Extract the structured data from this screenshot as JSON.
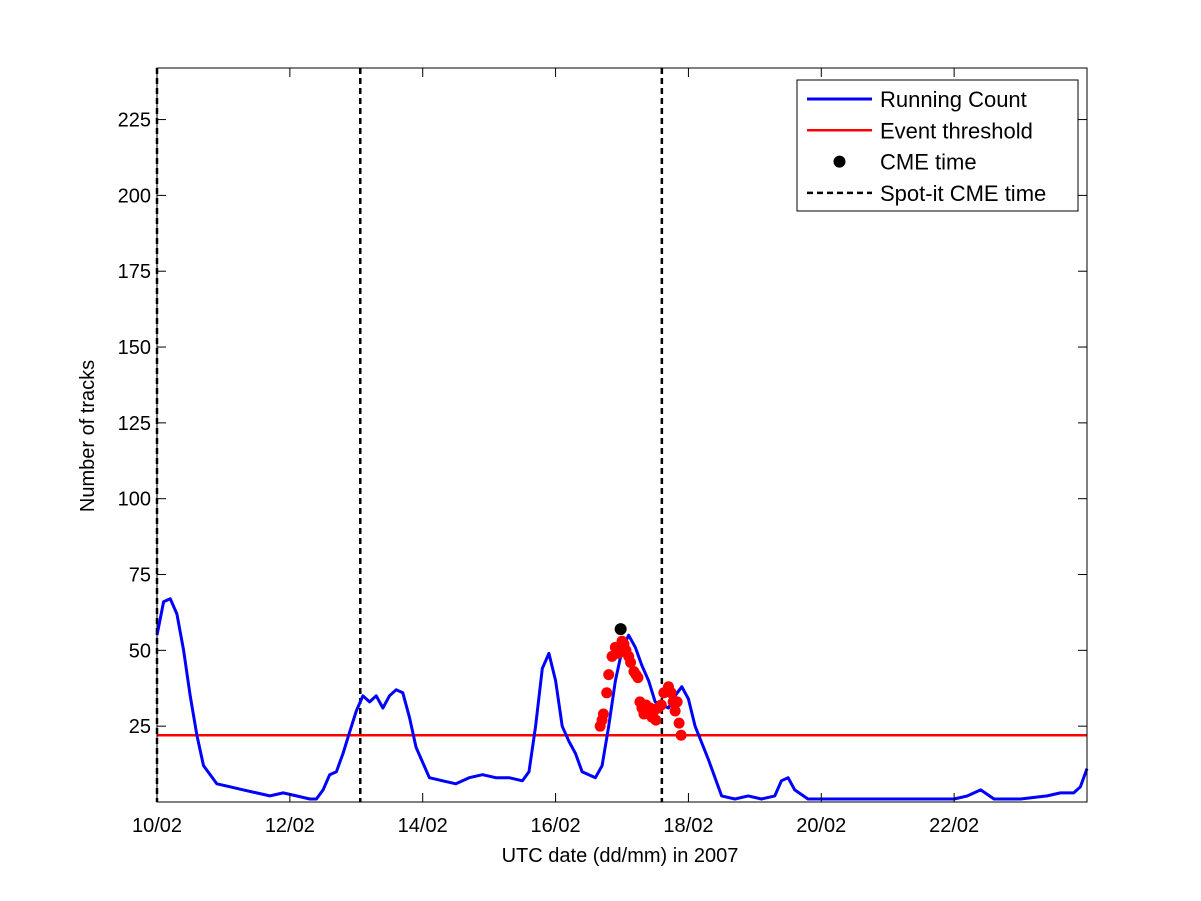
{
  "chart_data": {
    "type": "line",
    "title": "",
    "xlabel": "UTC date (dd/mm) in 2007",
    "ylabel": "Number of tracks",
    "x_unit": "date (UTC), 2007",
    "xlim": [
      "2007-02-10 00:00",
      "2007-02-24 00:00"
    ],
    "ylim": [
      0,
      242
    ],
    "x_ticks": [
      {
        "date": "2007-02-10",
        "label": "10/02"
      },
      {
        "date": "2007-02-12",
        "label": "12/02"
      },
      {
        "date": "2007-02-14",
        "label": "14/02"
      },
      {
        "date": "2007-02-16",
        "label": "16/02"
      },
      {
        "date": "2007-02-18",
        "label": "18/02"
      },
      {
        "date": "2007-02-20",
        "label": "20/02"
      },
      {
        "date": "2007-02-22",
        "label": "22/02"
      }
    ],
    "y_ticks": [
      25,
      50,
      75,
      100,
      125,
      150,
      175,
      200,
      225
    ],
    "grid": false,
    "legend_position": "top-right",
    "colors": {
      "running_count": "#0000ff",
      "threshold": "#ff0000",
      "event_markers": "#ff0000",
      "cme_marker": "#000000",
      "spot_it_lines": "#000000"
    },
    "legend": [
      {
        "label": "Running Count",
        "style": "blue-solid-line"
      },
      {
        "label": "Event threshold",
        "style": "red-solid-line"
      },
      {
        "label": "CME time",
        "style": "black-dot"
      },
      {
        "label": "Spot-it CME time",
        "style": "black-dashed-line"
      }
    ],
    "series": [
      {
        "name": "Running Count",
        "x": [
          "2007-02-10 00:00",
          "2007-02-10 02:24",
          "2007-02-10 04:48",
          "2007-02-10 07:12",
          "2007-02-10 09:36",
          "2007-02-10 12:00",
          "2007-02-10 14:24",
          "2007-02-10 16:48",
          "2007-02-10 21:36",
          "2007-02-11 02:24",
          "2007-02-11 07:12",
          "2007-02-11 12:00",
          "2007-02-11 16:48",
          "2007-02-11 21:36",
          "2007-02-12 02:24",
          "2007-02-12 07:12",
          "2007-02-12 09:36",
          "2007-02-12 12:00",
          "2007-02-12 14:24",
          "2007-02-12 16:48",
          "2007-02-12 19:12",
          "2007-02-12 21:36",
          "2007-02-13 00:00",
          "2007-02-13 02:24",
          "2007-02-13 04:48",
          "2007-02-13 07:12",
          "2007-02-13 09:36",
          "2007-02-13 12:00",
          "2007-02-13 14:24",
          "2007-02-13 16:48",
          "2007-02-13 19:12",
          "2007-02-13 21:36",
          "2007-02-14 02:24",
          "2007-02-14 07:12",
          "2007-02-14 12:00",
          "2007-02-14 16:48",
          "2007-02-14 21:36",
          "2007-02-15 02:24",
          "2007-02-15 07:12",
          "2007-02-15 12:00",
          "2007-02-15 14:24",
          "2007-02-15 16:48",
          "2007-02-15 19:12",
          "2007-02-15 21:36",
          "2007-02-16 00:00",
          "2007-02-16 02:24",
          "2007-02-16 04:48",
          "2007-02-16 07:12",
          "2007-02-16 09:36",
          "2007-02-16 12:00",
          "2007-02-16 14:24",
          "2007-02-16 16:48",
          "2007-02-16 19:12",
          "2007-02-16 21:36",
          "2007-02-17 00:00",
          "2007-02-17 02:24",
          "2007-02-17 04:48",
          "2007-02-17 07:12",
          "2007-02-17 09:36",
          "2007-02-17 12:00",
          "2007-02-17 14:24",
          "2007-02-17 16:48",
          "2007-02-17 19:12",
          "2007-02-17 21:36",
          "2007-02-18 00:00",
          "2007-02-18 02:24",
          "2007-02-18 07:12",
          "2007-02-18 12:00",
          "2007-02-18 16:48",
          "2007-02-18 21:36",
          "2007-02-19 02:24",
          "2007-02-19 07:12",
          "2007-02-19 09:36",
          "2007-02-19 12:00",
          "2007-02-19 14:24",
          "2007-02-19 19:12",
          "2007-02-20 00:00",
          "2007-02-20 09:36",
          "2007-02-20 19:12",
          "2007-02-21 04:48",
          "2007-02-21 14:24",
          "2007-02-22 00:00",
          "2007-02-22 04:48",
          "2007-02-22 09:36",
          "2007-02-22 14:24",
          "2007-02-22 19:12",
          "2007-02-23 00:00",
          "2007-02-23 09:36",
          "2007-02-23 14:24",
          "2007-02-23 19:12",
          "2007-02-23 21:36",
          "2007-02-24 00:00"
        ],
        "values": [
          55,
          66,
          67,
          62,
          50,
          35,
          22,
          12,
          6,
          5,
          4,
          3,
          2,
          3,
          2,
          1,
          1,
          4,
          9,
          10,
          16,
          23,
          30,
          35,
          33,
          35,
          31,
          35,
          37,
          36,
          28,
          18,
          8,
          7,
          6,
          8,
          9,
          8,
          8,
          7,
          10,
          25,
          44,
          49,
          40,
          25,
          20,
          16,
          10,
          9,
          8,
          12,
          25,
          40,
          50,
          55,
          51,
          45,
          40,
          33,
          32,
          31,
          35,
          38,
          34,
          25,
          14,
          2,
          1,
          2,
          1,
          2,
          7,
          8,
          4,
          1,
          1,
          1,
          1,
          1,
          1,
          1,
          2,
          4,
          1,
          1,
          1,
          2,
          3,
          3,
          5,
          11
        ]
      },
      {
        "name": "Event threshold",
        "x": [
          "2007-02-10 00:00",
          "2007-02-24 00:00"
        ],
        "values": [
          22,
          22
        ]
      },
      {
        "name": "Event points",
        "x": [
          "2007-02-16 16:07",
          "2007-02-16 16:48",
          "2007-02-16 17:17",
          "2007-02-16 18:29",
          "2007-02-16 19:12",
          "2007-02-16 20:24",
          "2007-02-16 21:36",
          "2007-02-16 22:48",
          "2007-02-17 00:00",
          "2007-02-17 00:43",
          "2007-02-17 01:26",
          "2007-02-17 02:24",
          "2007-02-17 03:07",
          "2007-02-17 04:19",
          "2007-02-17 05:02",
          "2007-02-17 05:45",
          "2007-02-17 06:29",
          "2007-02-17 07:12",
          "2007-02-17 07:55",
          "2007-02-17 08:38",
          "2007-02-17 09:22",
          "2007-02-17 10:05",
          "2007-02-17 10:48",
          "2007-02-17 11:31",
          "2007-02-17 12:14",
          "2007-02-17 12:58",
          "2007-02-17 14:10",
          "2007-02-17 15:07",
          "2007-02-17 16:48",
          "2007-02-17 17:46",
          "2007-02-17 18:29",
          "2007-02-17 19:12",
          "2007-02-17 19:55",
          "2007-02-17 20:38",
          "2007-02-17 21:22"
        ],
        "values": [
          25,
          27,
          29,
          36,
          42,
          48,
          51,
          49,
          53,
          52,
          50,
          48,
          46,
          43,
          42,
          41,
          33,
          31,
          29,
          32,
          30,
          31,
          28,
          30,
          27,
          31,
          32,
          36,
          38,
          36,
          33,
          30,
          33,
          26,
          22
        ]
      },
      {
        "name": "CME time",
        "x": [
          "2007-02-16 23:31"
        ],
        "values": [
          57
        ]
      },
      {
        "name": "Spot-it CME time",
        "x": [
          "2007-02-10 00:00",
          "2007-02-13 01:26",
          "2007-02-17 14:24"
        ]
      }
    ]
  }
}
